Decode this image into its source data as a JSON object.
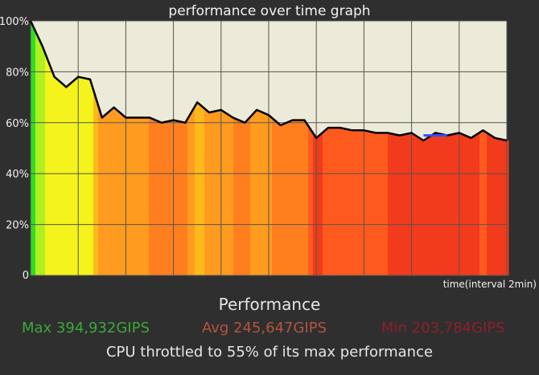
{
  "chart_data": {
    "type": "area",
    "title": "performance over time graph",
    "xlabel": "time(interval 2min)",
    "ylabel": "",
    "ylim": [
      0,
      100
    ],
    "yticks": [
      "0",
      "20%",
      "40%",
      "60%",
      "80%",
      "100%"
    ],
    "grid": true,
    "x": [
      0,
      0.5,
      1,
      1.5,
      2,
      2.5,
      3,
      3.5,
      4,
      4.5,
      5,
      5.5,
      6,
      6.5,
      7,
      7.5,
      8,
      8.5,
      9,
      9.5,
      10,
      10.5,
      11,
      11.5,
      12,
      12.5,
      13,
      13.5,
      14,
      14.5,
      15,
      15.5,
      16,
      16.5,
      17,
      17.5,
      18,
      18.5,
      19,
      19.5,
      20
    ],
    "series": [
      {
        "values": [
          100,
          90,
          78,
          74,
          78,
          77,
          62,
          66,
          62,
          62,
          62,
          60,
          61,
          60,
          68,
          64,
          65,
          62,
          60,
          65,
          63,
          59,
          61,
          61,
          54,
          58,
          58,
          57,
          57,
          56,
          56,
          55,
          56,
          53,
          56,
          55,
          56,
          54,
          57,
          54,
          53
        ]
      },
      {
        "values": [
          null,
          null,
          null,
          null,
          null,
          null,
          null,
          null,
          null,
          null,
          null,
          null,
          null,
          null,
          null,
          null,
          null,
          null,
          null,
          null,
          null,
          null,
          null,
          null,
          null,
          null,
          null,
          null,
          null,
          null,
          null,
          null,
          null,
          55,
          55,
          55,
          null,
          null,
          null,
          null,
          null
        ]
      }
    ]
  },
  "summary": {
    "title": "Performance",
    "max": "Max 394,932GIPS",
    "avg": "Avg 245,647GIPS",
    "min": "Min 203,784GIPS",
    "throttle": "CPU throttled to 55% of its max performance"
  },
  "colors": {
    "plot_bg": "#ecead8",
    "grid": "#555555",
    "line": "#000000",
    "marker": "#3a4cff",
    "max_text": "#3aa83a",
    "avg_text": "#b5533f",
    "min_text": "#8e1f2a"
  }
}
